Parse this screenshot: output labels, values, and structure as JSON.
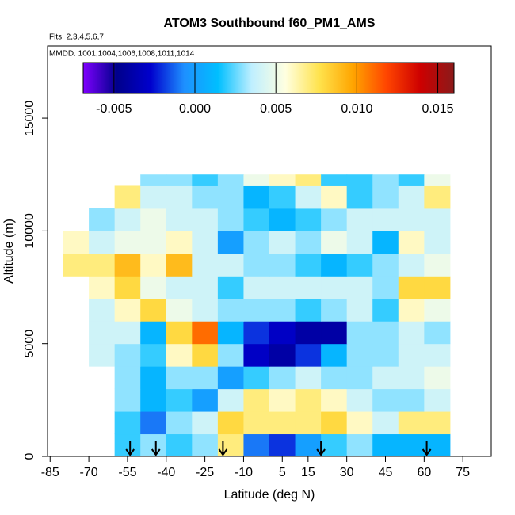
{
  "chart_data": {
    "type": "heatmap",
    "title": "ATOM3 Southbound f60_PM1_AMS",
    "subtitle": "Flts: 2,3,4,5,6,7",
    "annotation": "MMDD: 1001,1004,1006,1008,1011,1014",
    "x_label": "Latitude (deg N)",
    "y_label": "Altitude (m)",
    "xlim": [
      -86,
      86
    ],
    "ylim": [
      0,
      18200
    ],
    "xticks": [
      -85,
      -70,
      -55,
      -40,
      -25,
      -10,
      5,
      15,
      30,
      45,
      60,
      75
    ],
    "yticks": [
      0,
      5000,
      10000,
      15000
    ],
    "x_bins": [
      -80,
      -70,
      -60,
      -50,
      -40,
      -30,
      -20,
      -10,
      0,
      10,
      20,
      30,
      40,
      50,
      60,
      70
    ],
    "y_bins": [
      0,
      1000,
      2000,
      3000,
      4000,
      5000,
      6000,
      7000,
      8000,
      9000,
      10000,
      11000,
      12000,
      12500
    ],
    "values": [
      [
        null,
        null,
        0.002,
        0.003,
        0.002,
        0.003,
        0.007,
        -0.001,
        -0.002,
        0.0,
        0.002,
        0.003,
        0.001,
        0.001,
        0.001
      ],
      [
        null,
        null,
        0.002,
        -0.001,
        0.003,
        0.004,
        0.008,
        0.007,
        0.007,
        0.007,
        0.008,
        0.006,
        0.004,
        0.007,
        0.007
      ],
      [
        null,
        null,
        0.003,
        0.001,
        0.002,
        0.0,
        0.004,
        0.007,
        0.006,
        0.007,
        0.006,
        0.004,
        0.003,
        0.003,
        0.004
      ],
      [
        null,
        null,
        0.003,
        0.001,
        0.003,
        0.003,
        0.0,
        0.002,
        0.003,
        0.004,
        0.003,
        0.003,
        0.004,
        0.004,
        0.005
      ],
      [
        null,
        0.004,
        0.003,
        0.002,
        0.006,
        0.008,
        0.003,
        -0.003,
        -0.004,
        -0.002,
        0.001,
        0.003,
        0.003,
        0.004,
        0.004
      ],
      [
        null,
        0.004,
        0.004,
        0.001,
        0.008,
        0.011,
        0.001,
        -0.002,
        -0.003,
        -0.004,
        -0.004,
        0.003,
        0.003,
        0.004,
        0.003
      ],
      [
        null,
        0.004,
        0.006,
        0.008,
        0.005,
        0.004,
        0.003,
        0.003,
        0.003,
        0.002,
        0.003,
        0.004,
        0.002,
        0.006,
        0.005
      ],
      [
        null,
        0.006,
        0.008,
        0.005,
        0.004,
        0.004,
        0.002,
        0.004,
        0.004,
        0.004,
        0.004,
        0.004,
        0.003,
        0.008,
        0.008
      ],
      [
        0.007,
        0.007,
        0.009,
        0.006,
        0.009,
        0.004,
        0.004,
        0.003,
        0.003,
        0.002,
        0.001,
        0.002,
        0.003,
        0.004,
        0.005
      ],
      [
        0.006,
        0.004,
        0.005,
        0.005,
        0.006,
        0.004,
        0.0,
        0.003,
        0.004,
        0.003,
        0.005,
        0.004,
        0.001,
        0.006,
        0.004
      ],
      [
        null,
        0.003,
        0.004,
        0.005,
        0.004,
        0.004,
        0.003,
        0.002,
        0.001,
        0.002,
        0.003,
        0.004,
        0.004,
        0.004,
        0.004
      ],
      [
        null,
        null,
        0.007,
        0.004,
        0.004,
        0.003,
        0.003,
        0.001,
        0.002,
        0.004,
        0.006,
        0.002,
        0.003,
        0.004,
        0.007
      ],
      [
        null,
        null,
        null,
        0.003,
        0.003,
        0.002,
        0.003,
        0.005,
        0.006,
        0.007,
        0.002,
        0.002,
        0.003,
        0.002,
        0.005
      ]
    ],
    "arrows": [
      -54,
      -44,
      -18,
      20,
      61
    ],
    "clim": [
      -0.0069,
      0.016
    ],
    "cticks": [
      -0.005,
      {
        "value": 0,
        "label": "0.000"
      },
      0.005,
      {
        "value": 0.01,
        "label": "0.010"
      },
      0.015
    ],
    "colors": [
      "#7f00ff",
      "#00008b",
      "#0000cd",
      "#1e90ff",
      "#00bfff",
      "#bfefff",
      "#ffffe0",
      "#ffe34d",
      "#ffa500",
      "#ff4500",
      "#cd0000",
      "#8b1a1a"
    ]
  }
}
